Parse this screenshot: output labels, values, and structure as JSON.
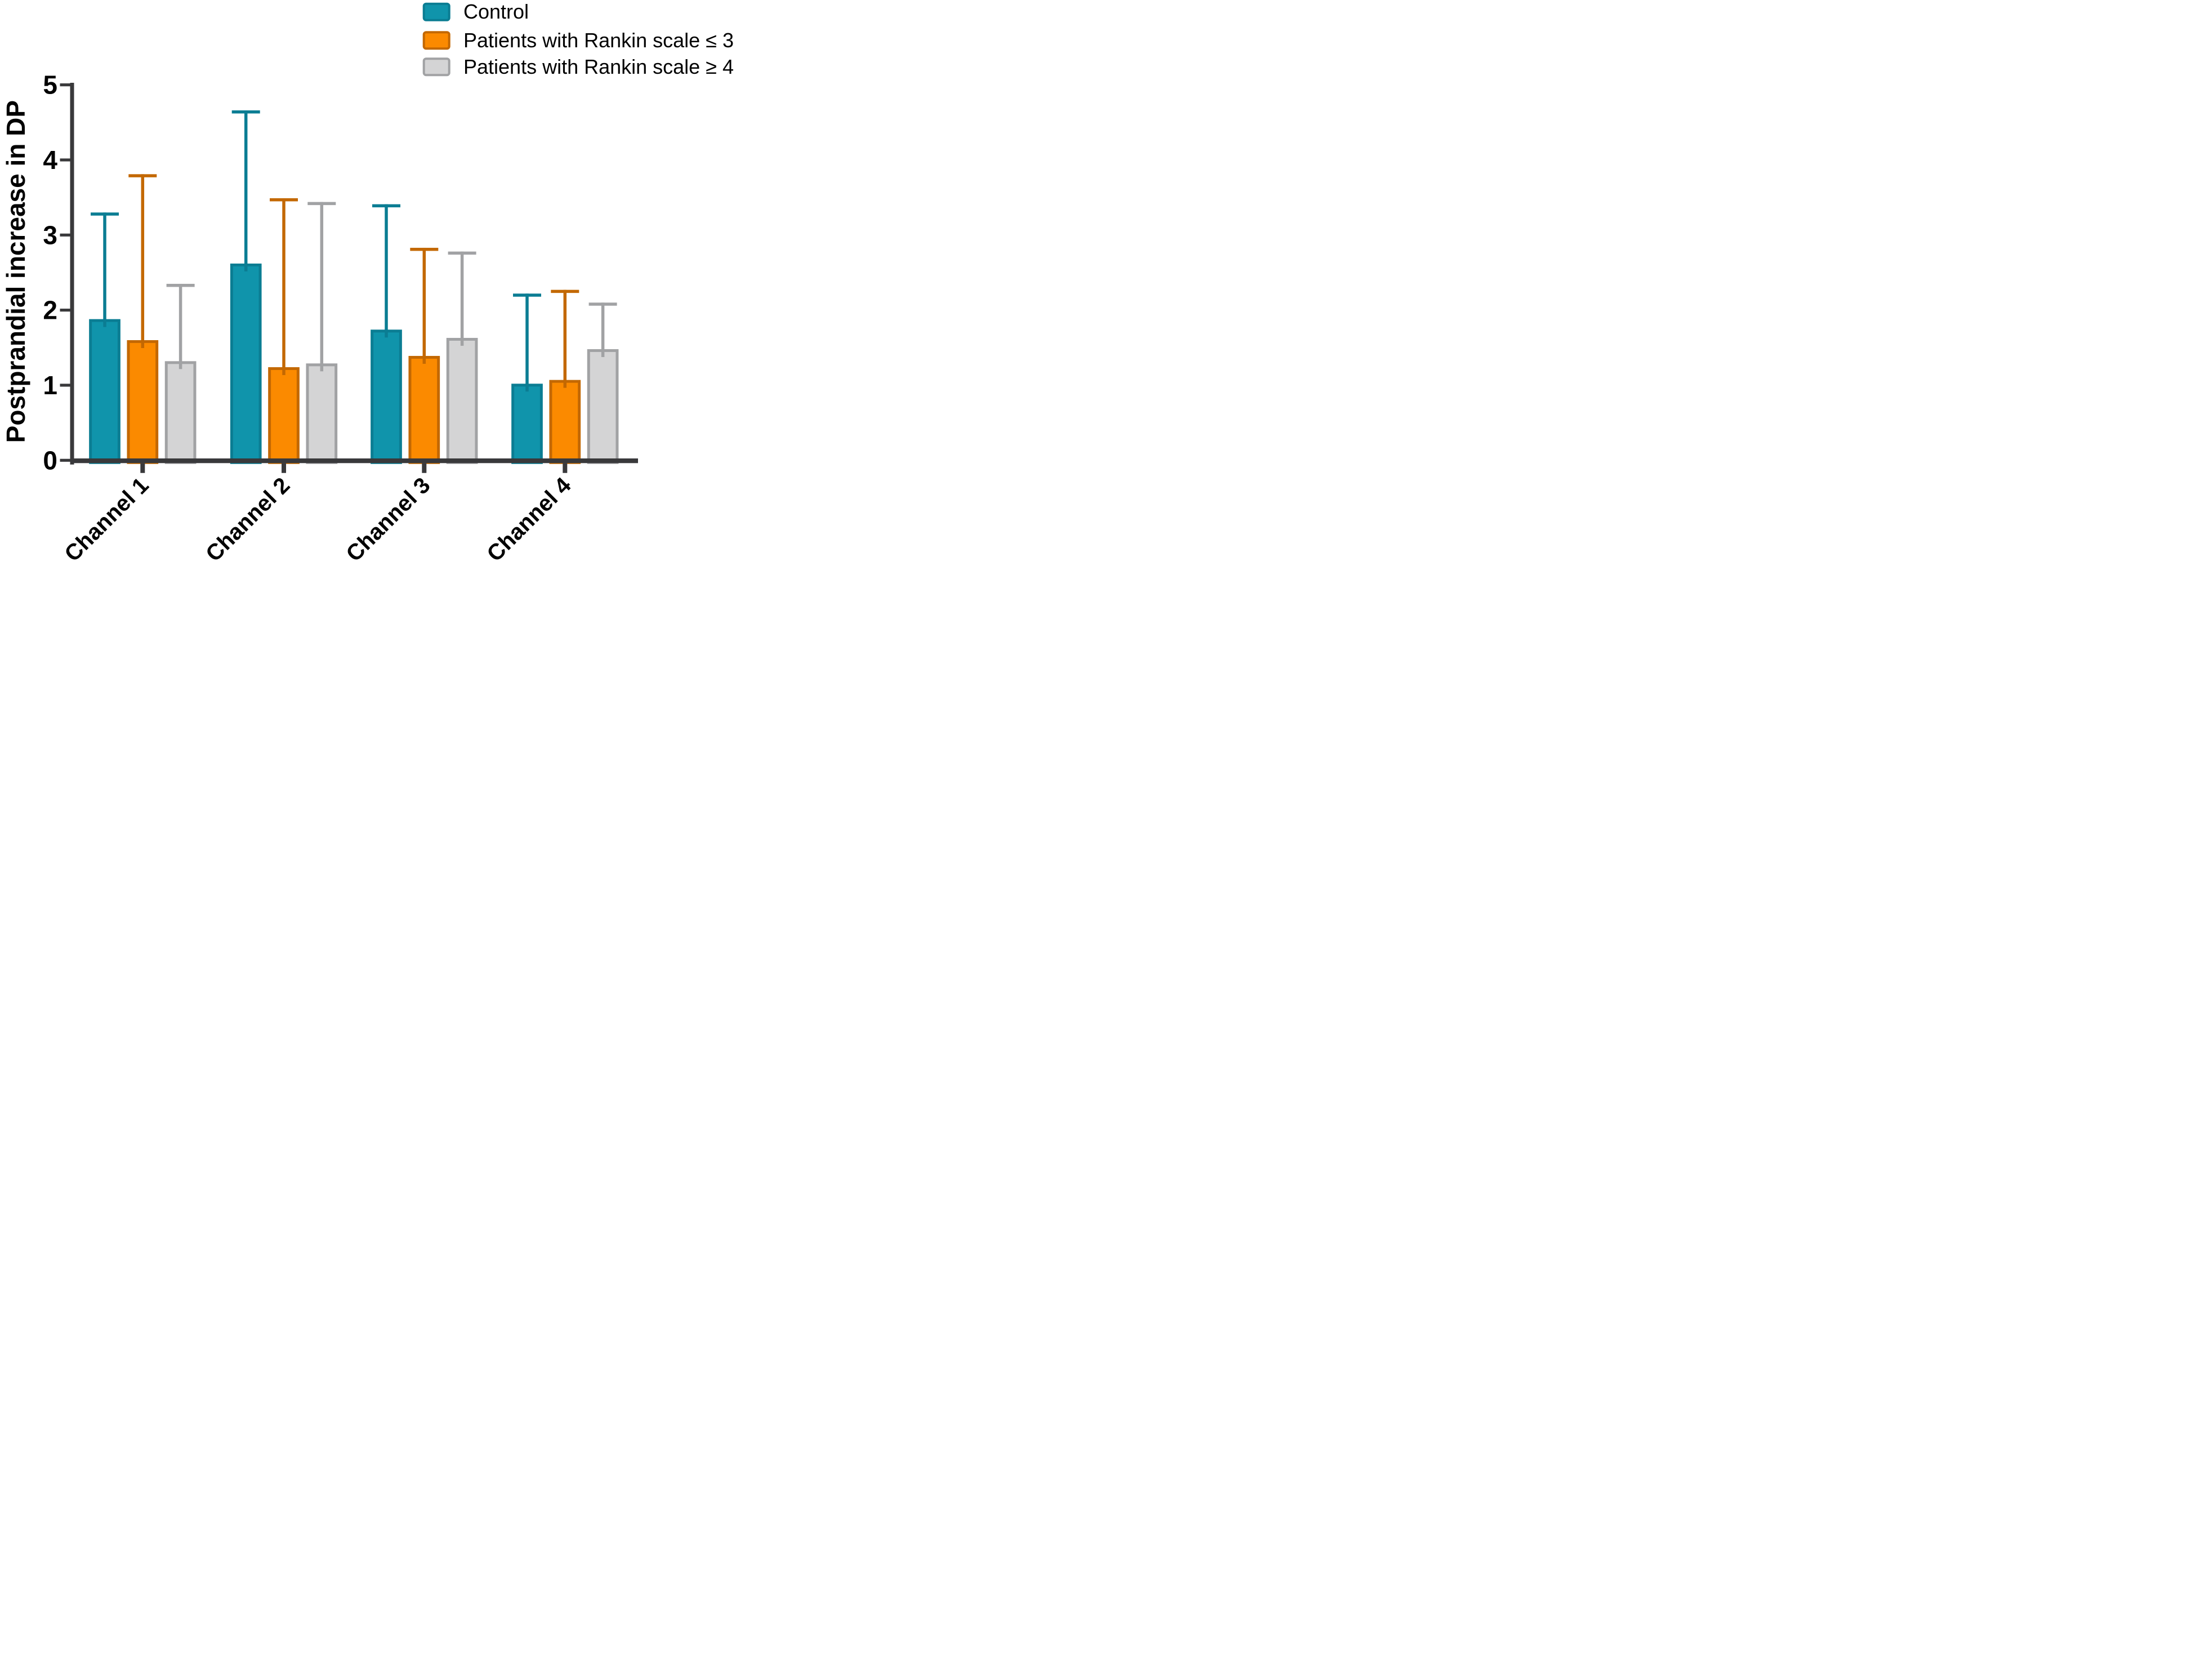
{
  "figure": {
    "background": "#ffffff"
  },
  "colors": {
    "axis": "#39393b",
    "text": "#000000"
  },
  "chart_data": {
    "type": "bar",
    "title": "",
    "xlabel": "",
    "ylabel": "Postprandial increase in DP",
    "ylim": [
      0,
      5
    ],
    "yticks": [
      "0",
      "1",
      "2",
      "3",
      "4",
      "5"
    ],
    "grid": false,
    "legend_position": "top-right",
    "error_bars": "upper-only",
    "categories": [
      "Channel 1",
      "Channel 2",
      "Channel 3",
      "Channel 4"
    ],
    "series": [
      {
        "name": "Control",
        "fill": "#1094AB",
        "stroke": "#0B7D93",
        "values": [
          1.88,
          2.62,
          1.74,
          1.02
        ],
        "error_up": [
          1.42,
          2.04,
          1.67,
          1.2
        ]
      },
      {
        "name": "Patients with Rankin scale ≤ 3",
        "fill": "#FB8A00",
        "stroke": "#C36802",
        "values": [
          1.6,
          1.24,
          1.39,
          1.07
        ],
        "error_up": [
          2.21,
          2.25,
          1.44,
          1.2
        ]
      },
      {
        "name": "Patients with Rankin scale ≥ 4",
        "fill": "#D4D4D5",
        "stroke": "#A1A2A4",
        "values": [
          1.32,
          1.29,
          1.63,
          1.48
        ],
        "error_up": [
          1.03,
          2.15,
          1.15,
          0.62
        ]
      }
    ]
  }
}
